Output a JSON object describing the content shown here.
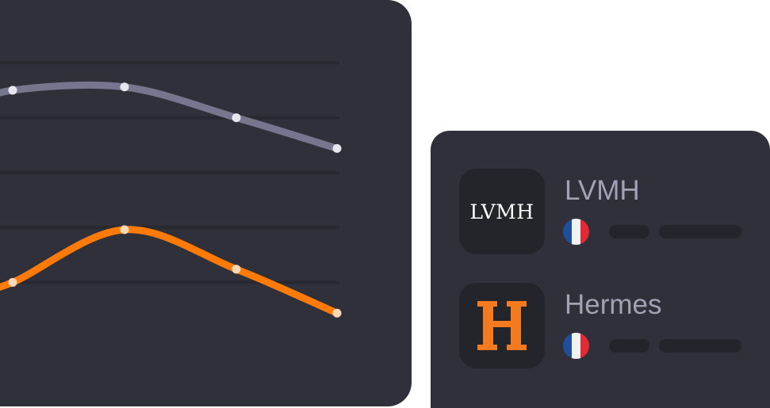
{
  "chart_data": {
    "type": "line",
    "x": [
      0,
      1,
      2,
      3
    ],
    "series": [
      {
        "color": "#77768f",
        "values": [
          2.75,
          2.78,
          2.5,
          2.22
        ],
        "leading_value": 2.6
      },
      {
        "color": "#ff7a06",
        "values": [
          1.0,
          1.48,
          1.12,
          0.72
        ],
        "leading_value": 0.9
      }
    ],
    "ylim": [
      0,
      3.5
    ],
    "grid": true,
    "point_color": "#e6e6ee",
    "background": "#30303a"
  },
  "companies": [
    {
      "name": "LVMH",
      "logo_text": "LVMH",
      "country_flag": "france-flag-icon"
    },
    {
      "name": "Hermes",
      "logo_icon": "hermes-h-logo-icon",
      "logo_color": "#f47a20",
      "country_flag": "france-flag-icon"
    }
  ],
  "colors": {
    "card_bg": "#30303a",
    "tile_bg": "#24242b",
    "name_text": "#a3a1b4",
    "flag_blue": "#1f4e9d",
    "flag_white": "#f2f2f2",
    "flag_red": "#e12a33"
  }
}
